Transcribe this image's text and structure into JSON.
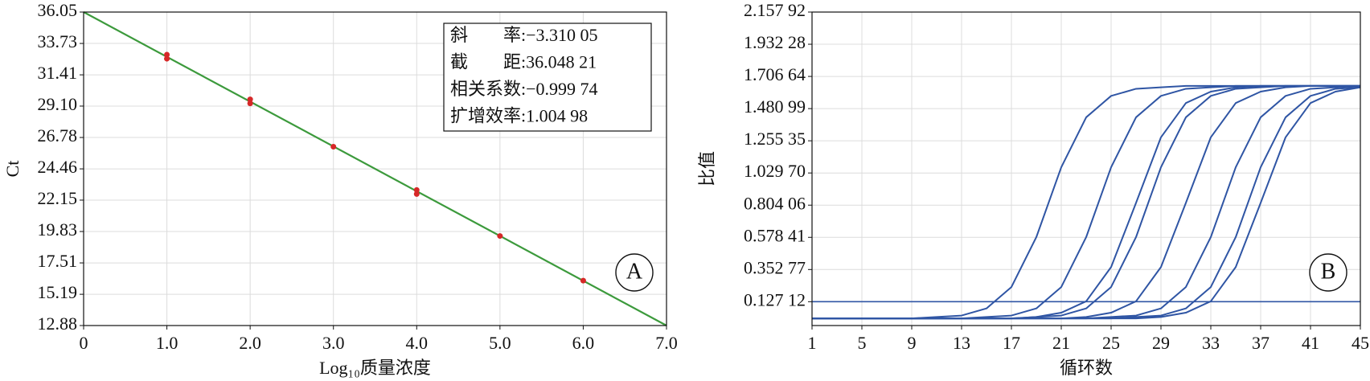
{
  "chart_data": [
    {
      "type": "scatter",
      "panel_label": "A",
      "xlabel": "Log₁₀质量浓度",
      "ylabel": "Ct",
      "xlim": [
        0,
        7
      ],
      "ylim": [
        12.88,
        36.05
      ],
      "xticks": [
        0,
        {
          "value": 1,
          "label": "1.0"
        },
        {
          "value": 2,
          "label": "2.0"
        },
        {
          "value": 3,
          "label": "3.0"
        },
        {
          "value": 4,
          "label": "4.0"
        },
        {
          "value": 5,
          "label": "5.0"
        },
        {
          "value": 6,
          "label": "6.0"
        },
        {
          "value": 7,
          "label": "7.0"
        }
      ],
      "yticks": [
        12.88,
        15.19,
        17.51,
        19.83,
        22.15,
        24.46,
        26.78,
        {
          "value": 29.1,
          "label": "29.10"
        },
        31.41,
        33.73,
        36.05
      ],
      "grid": true,
      "series": [
        {
          "color": "#d62828",
          "x": [
            1,
            1,
            2,
            2,
            3,
            4,
            4,
            5,
            6
          ],
          "values": [
            32.9,
            32.6,
            29.6,
            29.3,
            26.1,
            22.9,
            22.6,
            19.5,
            16.2
          ]
        }
      ],
      "fit_line": {
        "color": "#3c9a3c",
        "x": [
          0,
          7
        ],
        "values": [
          36.05,
          12.88
        ]
      },
      "annotations": [
        "斜　　率:−3.310 05",
        "截　　距:36.048 21",
        "相关系数:−0.999 74",
        "扩增效率:1.004 98"
      ]
    },
    {
      "type": "line",
      "panel_label": "B",
      "xlabel": "循环数",
      "ylabel": "比值",
      "xlim": [
        1,
        45
      ],
      "ylim": [
        -0.04,
        2.15792
      ],
      "xticks": [
        1,
        5,
        9,
        13,
        17,
        21,
        25,
        29,
        33,
        37,
        41,
        45
      ],
      "yticks": [
        {
          "value": 0.12712,
          "label": "0.127 12"
        },
        {
          "value": 0.35277,
          "label": "0.352 77"
        },
        {
          "value": 0.57841,
          "label": "0.578 41"
        },
        {
          "value": 0.80406,
          "label": "0.804 06"
        },
        {
          "value": 1.0297,
          "label": "1.029 70"
        },
        {
          "value": 1.25535,
          "label": "1.255 35"
        },
        {
          "value": 1.48099,
          "label": "1.480 99"
        },
        {
          "value": 1.70664,
          "label": "1.706 64"
        },
        {
          "value": 1.93228,
          "label": "1.932 28"
        },
        {
          "value": 2.15792,
          "label": "2.157 92"
        }
      ],
      "grid": true,
      "threshold": {
        "value": 0.12712,
        "color": "#2f55a4"
      },
      "x": [
        1,
        3,
        5,
        7,
        9,
        11,
        13,
        15,
        17,
        19,
        21,
        23,
        25,
        27,
        29,
        31,
        33,
        35,
        37,
        39,
        41,
        43,
        45
      ],
      "series": [
        {
          "color": "#2f55a4",
          "values": [
            0.01,
            0.01,
            0.01,
            0.01,
            0.01,
            0.02,
            0.03,
            0.08,
            0.23,
            0.58,
            1.07,
            1.42,
            1.57,
            1.62,
            1.63,
            1.64,
            1.64,
            1.64,
            1.64,
            1.64,
            1.64,
            1.64,
            1.64
          ]
        },
        {
          "color": "#2f55a4",
          "values": [
            0.01,
            0.01,
            0.01,
            0.01,
            0.01,
            0.01,
            0.01,
            0.02,
            0.03,
            0.08,
            0.23,
            0.58,
            1.07,
            1.42,
            1.57,
            1.62,
            1.63,
            1.64,
            1.64,
            1.64,
            1.64,
            1.64,
            1.64
          ]
        },
        {
          "color": "#2f55a4",
          "values": [
            0.01,
            0.01,
            0.01,
            0.01,
            0.01,
            0.01,
            0.01,
            0.01,
            0.01,
            0.02,
            0.05,
            0.13,
            0.37,
            0.82,
            1.28,
            1.52,
            1.6,
            1.63,
            1.64,
            1.64,
            1.64,
            1.64,
            1.64
          ]
        },
        {
          "color": "#2f55a4",
          "values": [
            0.01,
            0.01,
            0.01,
            0.01,
            0.01,
            0.01,
            0.01,
            0.01,
            0.01,
            0.02,
            0.03,
            0.08,
            0.23,
            0.58,
            1.07,
            1.42,
            1.57,
            1.62,
            1.63,
            1.64,
            1.64,
            1.64,
            1.64
          ]
        },
        {
          "color": "#2f55a4",
          "values": [
            0.01,
            0.01,
            0.01,
            0.01,
            0.01,
            0.01,
            0.01,
            0.01,
            0.01,
            0.01,
            0.01,
            0.02,
            0.05,
            0.13,
            0.37,
            0.82,
            1.28,
            1.52,
            1.6,
            1.63,
            1.64,
            1.64,
            1.64
          ]
        },
        {
          "color": "#2f55a4",
          "values": [
            0.01,
            0.01,
            0.01,
            0.01,
            0.01,
            0.01,
            0.01,
            0.01,
            0.01,
            0.01,
            0.01,
            0.01,
            0.02,
            0.03,
            0.08,
            0.23,
            0.58,
            1.07,
            1.42,
            1.57,
            1.62,
            1.63,
            1.64
          ]
        },
        {
          "color": "#2f55a4",
          "values": [
            0.01,
            0.01,
            0.01,
            0.01,
            0.01,
            0.01,
            0.01,
            0.01,
            0.01,
            0.01,
            0.01,
            0.01,
            0.01,
            0.02,
            0.03,
            0.08,
            0.23,
            0.58,
            1.07,
            1.42,
            1.57,
            1.62,
            1.63
          ]
        },
        {
          "color": "#2f55a4",
          "values": [
            0.01,
            0.01,
            0.01,
            0.01,
            0.01,
            0.01,
            0.01,
            0.01,
            0.01,
            0.01,
            0.01,
            0.01,
            0.01,
            0.01,
            0.02,
            0.05,
            0.13,
            0.37,
            0.82,
            1.28,
            1.52,
            1.6,
            1.63
          ]
        }
      ]
    }
  ]
}
